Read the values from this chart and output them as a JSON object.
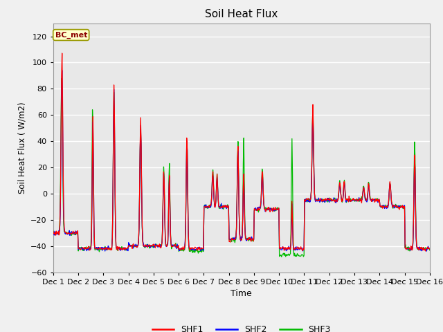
{
  "title": "Soil Heat Flux",
  "xlabel": "Time",
  "ylabel": "Soil Heat Flux ( W/m2)",
  "ylim": [
    -60,
    130
  ],
  "yticks": [
    -60,
    -40,
    -20,
    0,
    20,
    40,
    60,
    80,
    100,
    120
  ],
  "legend_label": "BC_met",
  "series_labels": [
    "SHF1",
    "SHF2",
    "SHF3"
  ],
  "series_colors": [
    "#ff0000",
    "#0000ff",
    "#00bb00"
  ],
  "fig_facecolor": "#f0f0f0",
  "plot_facecolor": "#e8e8e8",
  "num_days": 15,
  "points_per_day": 48,
  "figsize": [
    6.4,
    4.8
  ],
  "dpi": 100
}
